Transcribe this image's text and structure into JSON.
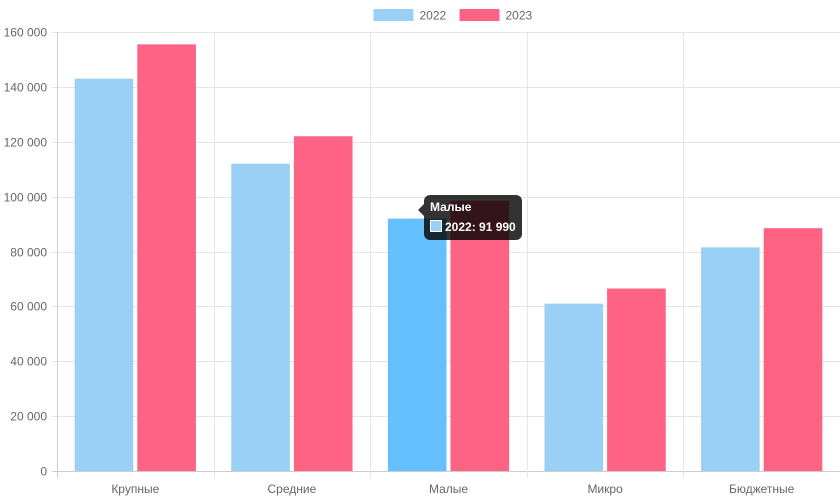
{
  "chart_data": {
    "type": "bar",
    "categories": [
      "Крупные",
      "Средние",
      "Малые",
      "Микро",
      "Бюджетные"
    ],
    "series": [
      {
        "name": "2022",
        "values": [
          143000,
          112000,
          91990,
          61000,
          81500
        ],
        "color": "#9ad0f5",
        "highlight_color": "#66c0ff"
      },
      {
        "name": "2023",
        "values": [
          155500,
          122000,
          98500,
          66500,
          88500
        ],
        "color": "#ff6384"
      }
    ],
    "ylim": [
      0,
      160000
    ],
    "y_ticks": [
      0,
      20000,
      40000,
      60000,
      80000,
      100000,
      120000,
      140000,
      160000
    ],
    "y_tick_labels": [
      "0",
      "20 000",
      "40 000",
      "60 000",
      "80 000",
      "100 000",
      "120 000",
      "140 000",
      "160 000"
    ],
    "legend_position": "top",
    "grid": true,
    "tooltip": {
      "title": "Малые",
      "label": "2022: 91 990",
      "category_index": 2,
      "series_index": 0
    }
  }
}
